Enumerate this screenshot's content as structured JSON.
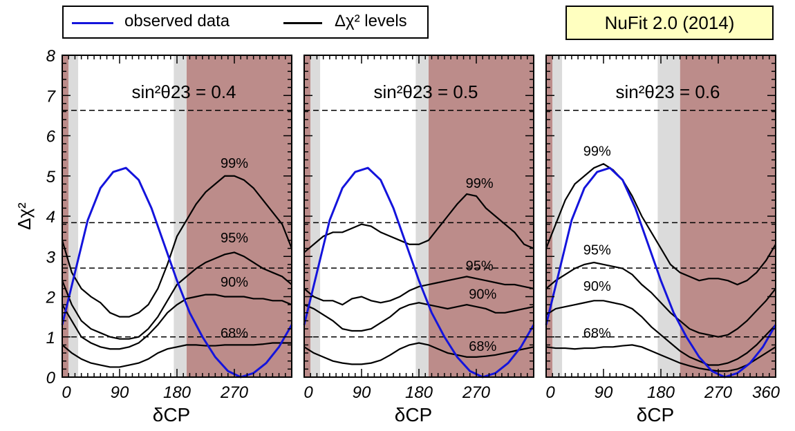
{
  "legend": {
    "observed_label": "observed data",
    "levels_label": "Δχ² levels",
    "observed_color": "#1414dc",
    "levels_color": "#000000"
  },
  "badge": {
    "text": "NuFit 2.0 (2014)",
    "background": "#ffffc0"
  },
  "colors": {
    "excluded_region": "#bc8c8a",
    "grey_band": "#dbdbdb",
    "observed": "#1414dc"
  },
  "chart_data": {
    "type": "line",
    "ylabel": "Δχ²",
    "xlabel": "δCP",
    "xlim": [
      0,
      360
    ],
    "ylim": [
      0,
      8
    ],
    "y_ticks": [
      "0",
      "1",
      "2",
      "3",
      "4",
      "5",
      "6",
      "7",
      "8"
    ],
    "x_ticks": [
      [
        "0",
        "90",
        "180",
        "270"
      ],
      [
        "0",
        "90",
        "180",
        "270"
      ],
      [
        "0",
        "90",
        "180",
        "270",
        "360"
      ]
    ],
    "reference_levels": [
      1.0,
      2.71,
      3.84,
      6.63
    ],
    "panels": [
      {
        "title": "sin²θ23 = 0.4",
        "grey_bands": [
          [
            10,
            25
          ],
          [
            175,
            195
          ]
        ],
        "excluded_region": [
          195,
          360
        ],
        "observed": {
          "x": [
            0,
            20,
            40,
            60,
            80,
            100,
            120,
            140,
            160,
            180,
            200,
            220,
            240,
            260,
            280,
            300,
            320,
            340,
            360
          ],
          "y": [
            1.3,
            2.6,
            3.9,
            4.7,
            5.1,
            5.2,
            4.9,
            4.2,
            3.3,
            2.4,
            1.6,
            1.0,
            0.5,
            0.15,
            0.0,
            0.1,
            0.35,
            0.75,
            1.3
          ]
        },
        "series": [
          {
            "name": "99%",
            "x": [
              0,
              15,
              30,
              45,
              60,
              75,
              90,
              105,
              120,
              135,
              150,
              165,
              180,
              195,
              210,
              225,
              240,
              255,
              270,
              285,
              300,
              315,
              330,
              345,
              360
            ],
            "y": [
              3.4,
              2.6,
              2.2,
              2.0,
              1.85,
              1.6,
              1.5,
              1.5,
              1.6,
              1.8,
              2.2,
              2.8,
              3.5,
              3.9,
              4.3,
              4.6,
              4.8,
              5.0,
              5.0,
              4.9,
              4.7,
              4.4,
              4.1,
              3.8,
              3.2
            ]
          },
          {
            "name": "95%",
            "x": [
              0,
              15,
              30,
              45,
              60,
              75,
              90,
              105,
              120,
              135,
              150,
              165,
              180,
              195,
              210,
              225,
              240,
              255,
              270,
              285,
              300,
              315,
              330,
              345,
              360
            ],
            "y": [
              2.4,
              1.8,
              1.4,
              1.2,
              1.1,
              1.0,
              0.95,
              0.95,
              1.0,
              1.2,
              1.5,
              1.9,
              2.3,
              2.5,
              2.7,
              2.85,
              2.95,
              3.05,
              3.1,
              3.0,
              2.85,
              2.7,
              2.6,
              2.5,
              2.3
            ]
          },
          {
            "name": "90%",
            "x": [
              0,
              15,
              30,
              45,
              60,
              75,
              90,
              105,
              120,
              135,
              150,
              165,
              180,
              195,
              210,
              225,
              240,
              255,
              270,
              285,
              300,
              315,
              330,
              345,
              360
            ],
            "y": [
              1.8,
              1.4,
              1.0,
              0.85,
              0.75,
              0.7,
              0.7,
              0.75,
              0.85,
              1.05,
              1.3,
              1.6,
              1.8,
              1.95,
              2.0,
              2.05,
              2.05,
              2.0,
              2.0,
              2.0,
              1.95,
              1.95,
              1.9,
              1.9,
              1.8
            ]
          },
          {
            "name": "68%",
            "x": [
              0,
              15,
              30,
              45,
              60,
              75,
              90,
              105,
              120,
              135,
              150,
              165,
              180,
              195,
              210,
              225,
              240,
              255,
              270,
              285,
              300,
              315,
              330,
              345,
              360
            ],
            "y": [
              0.8,
              0.6,
              0.45,
              0.35,
              0.3,
              0.25,
              0.25,
              0.3,
              0.35,
              0.45,
              0.6,
              0.7,
              0.75,
              0.8,
              0.8,
              0.78,
              0.78,
              0.8,
              0.8,
              0.8,
              0.8,
              0.82,
              0.85,
              0.85,
              0.85
            ]
          }
        ],
        "label_positions": {
          "99%": [
            270,
            5.2
          ],
          "95%": [
            270,
            3.35
          ],
          "90%": [
            270,
            2.25
          ],
          "68%": [
            270,
            0.98
          ]
        }
      },
      {
        "title": "sin²θ23 = 0.5",
        "grey_bands": [
          [
            10,
            25
          ],
          [
            175,
            195
          ]
        ],
        "excluded_region": [
          195,
          360
        ],
        "observed": {
          "x": [
            0,
            20,
            40,
            60,
            80,
            100,
            120,
            140,
            160,
            180,
            200,
            220,
            240,
            260,
            280,
            300,
            320,
            340,
            360
          ],
          "y": [
            1.3,
            2.6,
            3.9,
            4.7,
            5.1,
            5.2,
            4.9,
            4.2,
            3.3,
            2.4,
            1.6,
            1.0,
            0.5,
            0.15,
            0.0,
            0.1,
            0.35,
            0.75,
            1.3
          ]
        },
        "series": [
          {
            "name": "99%",
            "x": [
              0,
              15,
              30,
              45,
              60,
              75,
              90,
              105,
              120,
              135,
              150,
              165,
              180,
              195,
              210,
              225,
              240,
              255,
              270,
              285,
              300,
              315,
              330,
              345,
              360
            ],
            "y": [
              3.1,
              3.3,
              3.5,
              3.6,
              3.6,
              3.7,
              3.8,
              3.75,
              3.6,
              3.5,
              3.4,
              3.3,
              3.3,
              3.4,
              3.7,
              4.0,
              4.3,
              4.55,
              4.5,
              4.2,
              4.0,
              3.8,
              3.6,
              3.3,
              3.2
            ]
          },
          {
            "name": "95%",
            "x": [
              0,
              15,
              30,
              45,
              60,
              75,
              90,
              105,
              120,
              135,
              150,
              165,
              180,
              195,
              210,
              225,
              240,
              255,
              270,
              285,
              300,
              315,
              330,
              345,
              360
            ],
            "y": [
              2.2,
              2.0,
              1.9,
              1.9,
              1.8,
              1.95,
              2.0,
              1.9,
              1.85,
              1.9,
              2.0,
              2.15,
              2.25,
              2.3,
              2.35,
              2.4,
              2.45,
              2.5,
              2.45,
              2.4,
              2.35,
              2.3,
              2.3,
              2.25,
              2.2
            ]
          },
          {
            "name": "90%",
            "x": [
              0,
              15,
              30,
              45,
              60,
              75,
              90,
              105,
              120,
              135,
              150,
              165,
              180,
              195,
              210,
              225,
              240,
              255,
              270,
              285,
              300,
              315,
              330,
              345,
              360
            ],
            "y": [
              1.8,
              1.7,
              1.55,
              1.4,
              1.2,
              1.15,
              1.15,
              1.2,
              1.35,
              1.5,
              1.7,
              1.8,
              1.85,
              1.8,
              1.75,
              1.7,
              1.75,
              1.8,
              1.75,
              1.7,
              1.6,
              1.6,
              1.65,
              1.7,
              1.75
            ]
          },
          {
            "name": "68%",
            "x": [
              0,
              15,
              30,
              45,
              60,
              75,
              90,
              105,
              120,
              135,
              150,
              165,
              180,
              195,
              210,
              225,
              240,
              255,
              270,
              285,
              300,
              315,
              330,
              345,
              360
            ],
            "y": [
              0.75,
              0.6,
              0.5,
              0.4,
              0.35,
              0.32,
              0.32,
              0.35,
              0.42,
              0.55,
              0.7,
              0.8,
              0.85,
              0.8,
              0.7,
              0.6,
              0.55,
              0.5,
              0.5,
              0.52,
              0.55,
              0.6,
              0.65,
              0.7,
              0.75
            ]
          }
        ],
        "label_positions": {
          "99%": [
            275,
            4.7
          ],
          "95%": [
            275,
            2.65
          ],
          "90%": [
            280,
            1.95
          ],
          "68%": [
            280,
            0.65
          ]
        }
      },
      {
        "title": "sin²θ23 = 0.6",
        "grey_bands": [
          [
            10,
            25
          ],
          [
            175,
            210
          ]
        ],
        "excluded_region": [
          210,
          360
        ],
        "observed": {
          "x": [
            0,
            20,
            40,
            60,
            80,
            100,
            120,
            140,
            160,
            180,
            200,
            220,
            240,
            260,
            280,
            300,
            320,
            340,
            360
          ],
          "y": [
            1.3,
            2.6,
            3.9,
            4.7,
            5.1,
            5.2,
            4.9,
            4.2,
            3.3,
            2.4,
            1.6,
            1.0,
            0.5,
            0.15,
            0.0,
            0.1,
            0.35,
            0.75,
            1.3
          ]
        },
        "series": [
          {
            "name": "99%",
            "x": [
              0,
              15,
              30,
              45,
              60,
              75,
              90,
              105,
              120,
              135,
              150,
              165,
              180,
              195,
              210,
              225,
              240,
              255,
              270,
              285,
              300,
              315,
              330,
              345,
              360
            ],
            "y": [
              3.2,
              3.8,
              4.4,
              4.8,
              5.0,
              5.2,
              5.3,
              5.15,
              4.9,
              4.5,
              4.0,
              3.6,
              3.2,
              2.8,
              2.6,
              2.5,
              2.4,
              2.45,
              2.45,
              2.4,
              2.3,
              2.4,
              2.6,
              2.9,
              3.3
            ]
          },
          {
            "name": "95%",
            "x": [
              0,
              15,
              30,
              45,
              60,
              75,
              90,
              105,
              120,
              135,
              150,
              165,
              180,
              195,
              210,
              225,
              240,
              255,
              270,
              285,
              300,
              315,
              330,
              345,
              360
            ],
            "y": [
              2.2,
              2.4,
              2.55,
              2.7,
              2.8,
              2.85,
              2.8,
              2.75,
              2.7,
              2.55,
              2.3,
              2.1,
              1.85,
              1.6,
              1.4,
              1.2,
              1.1,
              1.05,
              1.0,
              1.05,
              1.2,
              1.4,
              1.65,
              1.9,
              2.2
            ]
          },
          {
            "name": "90%",
            "x": [
              0,
              15,
              30,
              45,
              60,
              75,
              90,
              105,
              120,
              135,
              150,
              165,
              180,
              195,
              210,
              225,
              240,
              255,
              270,
              285,
              300,
              315,
              330,
              345,
              360
            ],
            "y": [
              1.55,
              1.7,
              1.75,
              1.8,
              1.85,
              1.9,
              1.9,
              1.85,
              1.8,
              1.7,
              1.5,
              1.25,
              1.05,
              0.85,
              0.65,
              0.5,
              0.4,
              0.3,
              0.3,
              0.35,
              0.45,
              0.6,
              0.8,
              1.05,
              1.3
            ]
          },
          {
            "name": "68%",
            "x": [
              0,
              15,
              30,
              45,
              60,
              75,
              90,
              105,
              120,
              135,
              150,
              165,
              180,
              195,
              210,
              225,
              240,
              255,
              270,
              285,
              300,
              315,
              330,
              345,
              360
            ],
            "y": [
              0.75,
              0.72,
              0.72,
              0.7,
              0.72,
              0.72,
              0.75,
              0.75,
              0.78,
              0.8,
              0.75,
              0.65,
              0.55,
              0.45,
              0.35,
              0.28,
              0.22,
              0.18,
              0.15,
              0.15,
              0.2,
              0.3,
              0.45,
              0.6,
              0.75
            ]
          }
        ],
        "label_positions": {
          "99%": [
            80,
            5.5
          ],
          "95%": [
            80,
            3.05
          ],
          "90%": [
            80,
            2.15
          ],
          "68%": [
            80,
            0.98
          ]
        }
      }
    ]
  }
}
